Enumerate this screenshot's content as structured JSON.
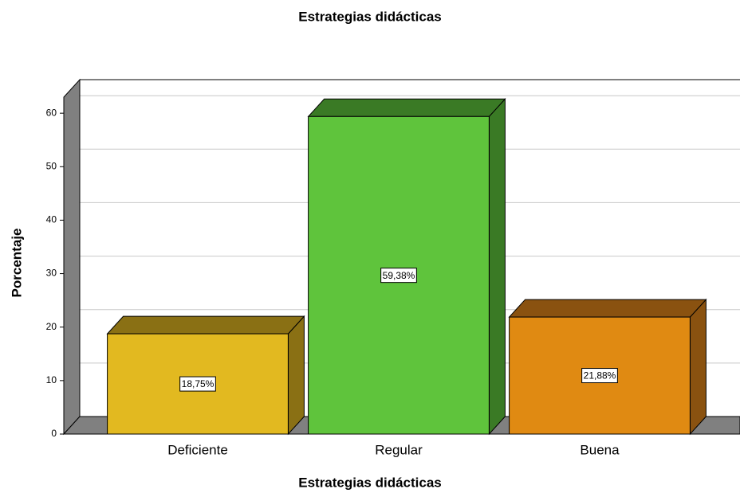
{
  "chart_data": {
    "type": "bar3d",
    "title": "Estrategias didácticas",
    "x_label": "Estrategias didácticas",
    "y_label": "Porcentaje",
    "categories": [
      "Deficiente",
      "Regular",
      "Buena"
    ],
    "values": [
      18.75,
      59.38,
      21.88
    ],
    "value_labels": [
      "18,75%",
      "59,38%",
      "21,88%"
    ],
    "colors": [
      "#e2b920",
      "#5fc43c",
      "#e08a12"
    ],
    "side_colors": [
      "#8a7014",
      "#3a7a25",
      "#8a5210"
    ],
    "ylim": [
      0,
      63
    ],
    "yticks": [
      0,
      10,
      20,
      30,
      40,
      50,
      60
    ],
    "grid": true
  }
}
